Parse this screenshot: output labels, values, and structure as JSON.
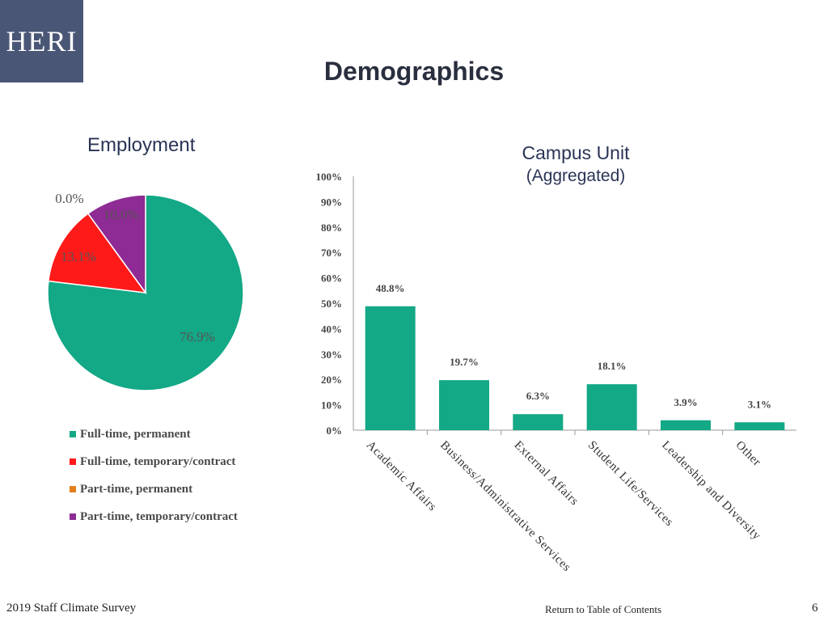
{
  "logo": {
    "text": "HERI"
  },
  "slide": {
    "title": "Demographics"
  },
  "footer": {
    "survey": "2019 Staff Climate Survey",
    "toc_link": "Return to Table of Contents",
    "page_number": "6"
  },
  "chart_data": [
    {
      "type": "pie",
      "title": "Employment",
      "categories": [
        "Full-time, permanent",
        "Full-time, temporary/contract",
        "Part-time, permanent",
        "Part-time, temporary/contract"
      ],
      "values": [
        76.9,
        13.1,
        0.0,
        10.0
      ],
      "labels": [
        "76.9%",
        "13.1%",
        "0.0%",
        "10.0%"
      ],
      "colors": [
        "#13a886",
        "#ff1a1a",
        "#e0801e",
        "#8e2b94"
      ],
      "legend_position": "bottom"
    },
    {
      "type": "bar",
      "title": "Campus Unit",
      "subtitle": "(Aggregated)",
      "categories": [
        "Academic Affairs",
        "Business/Administrative Services",
        "External Affairs",
        "Student Life/Services",
        "Leadership and Diversity",
        "Other"
      ],
      "values": [
        48.8,
        19.7,
        6.3,
        18.1,
        3.9,
        3.1
      ],
      "labels": [
        "48.8%",
        "19.7%",
        "6.3%",
        "18.1%",
        "3.9%",
        "3.1%"
      ],
      "ylim": [
        0,
        100
      ],
      "yticks": [
        "0%",
        "10%",
        "20%",
        "30%",
        "40%",
        "50%",
        "60%",
        "70%",
        "80%",
        "90%",
        "100%"
      ],
      "bar_color": "#13a886",
      "grid": false
    }
  ]
}
